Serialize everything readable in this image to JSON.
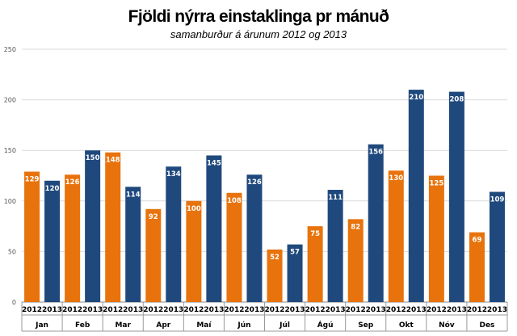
{
  "chart_data": {
    "type": "bar",
    "title": "Fjöldi nýrra einstaklinga pr mánuð",
    "subtitle": "samanburður á árunum 2012 og 2013",
    "categories": [
      "Jan",
      "Feb",
      "Mar",
      "Apr",
      "Maí",
      "Jún",
      "Júl",
      "Ágú",
      "Sep",
      "Okt",
      "Nóv",
      "Des"
    ],
    "series": [
      {
        "name": "2012",
        "color": "#e8730c",
        "values": [
          129,
          126,
          148,
          92,
          100,
          108,
          52,
          75,
          82,
          130,
          125,
          69
        ]
      },
      {
        "name": "2013",
        "color": "#1f497d",
        "values": [
          120,
          150,
          114,
          134,
          145,
          126,
          57,
          111,
          156,
          210,
          208,
          109
        ]
      }
    ],
    "ylim": [
      0,
      250
    ],
    "yticks": [
      0,
      50,
      100,
      150,
      200,
      250
    ],
    "data_labels": true,
    "grid": true,
    "legend": "none"
  }
}
